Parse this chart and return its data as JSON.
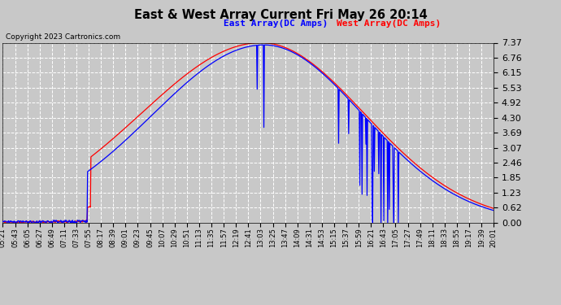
{
  "title": "East & West Array Current Fri May 26 20:14",
  "copyright": "Copyright 2023 Cartronics.com",
  "east_label": "East Array(DC Amps)",
  "west_label": "West Array(DC Amps)",
  "east_color": "blue",
  "west_color": "red",
  "background_color": "#c8c8c8",
  "plot_bg_color": "#c8c8c8",
  "grid_color": "white",
  "yticks": [
    0.0,
    0.62,
    1.23,
    1.85,
    2.46,
    3.07,
    3.69,
    4.3,
    4.92,
    5.53,
    6.15,
    6.76,
    7.37
  ],
  "ylim": [
    0,
    7.37
  ],
  "xtick_labels": [
    "05:21",
    "05:43",
    "06:05",
    "06:27",
    "06:49",
    "07:11",
    "07:33",
    "07:55",
    "08:17",
    "08:39",
    "09:01",
    "09:23",
    "09:45",
    "10:07",
    "10:29",
    "10:51",
    "11:13",
    "11:35",
    "11:57",
    "12:19",
    "12:41",
    "13:03",
    "13:25",
    "13:47",
    "14:09",
    "14:31",
    "14:53",
    "15:15",
    "15:37",
    "15:59",
    "16:21",
    "16:43",
    "17:05",
    "17:27",
    "17:49",
    "18:11",
    "18:33",
    "18:55",
    "19:17",
    "19:39",
    "20:01"
  ]
}
